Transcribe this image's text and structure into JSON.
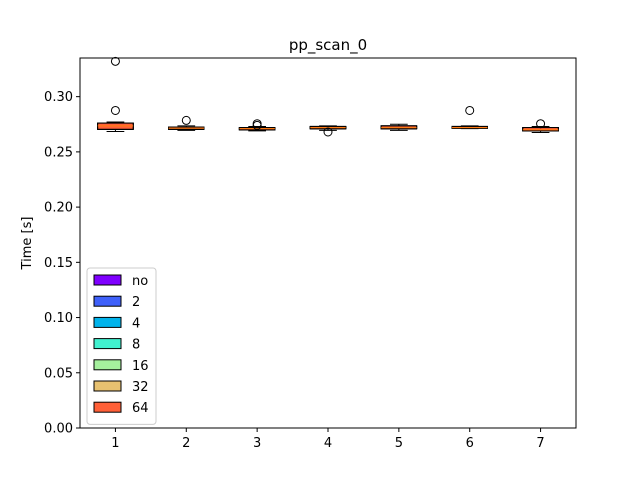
{
  "chart_data": {
    "type": "box",
    "title": "pp_scan_0",
    "xlabel": "",
    "ylabel": "Time [s]",
    "categories": [
      "1",
      "2",
      "3",
      "4",
      "5",
      "6",
      "7"
    ],
    "xlim": [
      0.5,
      7.5
    ],
    "ylim": [
      0.0,
      0.335
    ],
    "yticks": [
      0.0,
      0.05,
      0.1,
      0.15,
      0.2,
      0.25,
      0.3
    ],
    "ytick_labels": [
      "0.00",
      "0.05",
      "0.10",
      "0.15",
      "0.20",
      "0.25",
      "0.30"
    ],
    "legend_position": "lower-left",
    "grid": false,
    "series": [
      {
        "name": "no",
        "color": "#7f00ff"
      },
      {
        "name": "2",
        "color": "#3f61fa"
      },
      {
        "name": "4",
        "color": "#01b3eb"
      },
      {
        "name": "8",
        "color": "#41f1cf"
      },
      {
        "name": "16",
        "color": "#a5f09d"
      },
      {
        "name": "32",
        "color": "#e7c170"
      },
      {
        "name": "64",
        "color": "#ff6038"
      }
    ],
    "boxes": [
      {
        "x": "1",
        "min": 0.2685,
        "q1": 0.2705,
        "median": 0.2735,
        "q3": 0.276,
        "max": 0.277,
        "fliers": [
          0.2875,
          0.332
        ]
      },
      {
        "x": "2",
        "min": 0.2695,
        "q1": 0.2705,
        "median": 0.2715,
        "q3": 0.2725,
        "max": 0.2735,
        "fliers": [
          0.2785
        ]
      },
      {
        "x": "3",
        "min": 0.269,
        "q1": 0.27,
        "median": 0.271,
        "q3": 0.272,
        "max": 0.273,
        "fliers": [
          0.2755,
          0.274
        ]
      },
      {
        "x": "4",
        "min": 0.2695,
        "q1": 0.271,
        "median": 0.272,
        "q3": 0.273,
        "max": 0.2735,
        "fliers": [
          0.268
        ]
      },
      {
        "x": "5",
        "min": 0.2695,
        "q1": 0.271,
        "median": 0.272,
        "q3": 0.2735,
        "max": 0.275,
        "fliers": []
      },
      {
        "x": "6",
        "min": 0.271,
        "q1": 0.2715,
        "median": 0.272,
        "q3": 0.273,
        "max": 0.2735,
        "fliers": [
          0.2875
        ]
      },
      {
        "x": "7",
        "min": 0.2675,
        "q1": 0.269,
        "median": 0.27,
        "q3": 0.272,
        "max": 0.273,
        "fliers": [
          0.2755
        ]
      }
    ]
  }
}
